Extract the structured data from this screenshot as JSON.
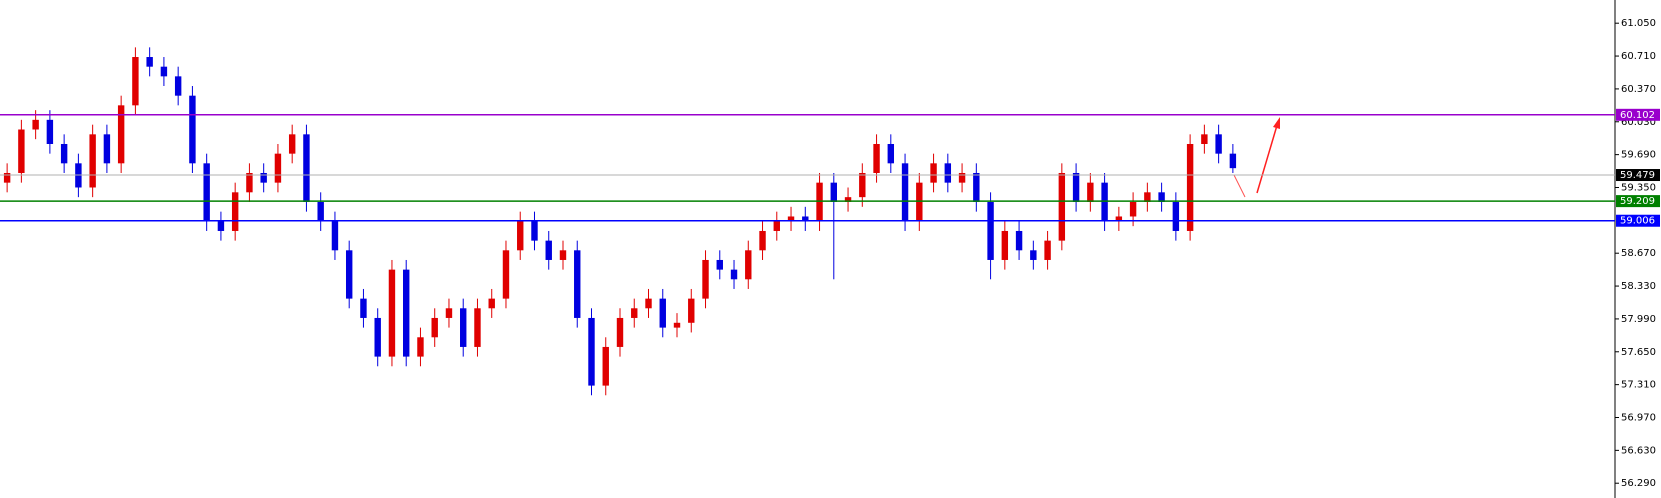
{
  "chart_data": {
    "type": "candlestick",
    "up_color": "#e00000",
    "down_color": "#0000e0",
    "open": [
      59.4,
      59.5,
      59.95,
      60.05,
      59.8,
      59.6,
      59.35,
      59.9,
      59.6,
      60.2,
      60.7,
      60.6,
      60.5,
      60.3,
      59.6,
      59.0,
      58.9,
      59.3,
      59.5,
      59.4,
      59.7,
      59.9,
      59.2,
      59.0,
      58.7,
      58.2,
      58.0,
      57.6,
      58.5,
      57.6,
      57.8,
      58.0,
      58.1,
      57.7,
      58.1,
      58.2,
      58.7,
      59.0,
      58.8,
      58.6,
      58.7,
      58.0,
      57.3,
      57.7,
      58.0,
      58.1,
      58.2,
      57.9,
      57.95,
      58.2,
      58.6,
      58.5,
      58.4,
      58.7,
      58.9,
      59.0,
      59.05,
      59.0,
      59.4,
      59.2,
      59.25,
      59.5,
      59.8,
      59.6,
      59.0,
      59.4,
      59.6,
      59.4,
      59.5,
      59.2,
      58.6,
      58.9,
      58.7,
      58.6,
      58.8,
      59.5,
      59.2,
      59.4,
      59.0,
      59.05,
      59.2,
      59.3,
      59.2,
      58.9,
      59.8,
      59.9,
      59.7
    ],
    "high": [
      59.6,
      60.05,
      60.15,
      60.15,
      59.9,
      59.7,
      60.0,
      60.0,
      60.3,
      60.8,
      60.8,
      60.7,
      60.6,
      60.4,
      59.7,
      59.1,
      59.4,
      59.6,
      59.6,
      59.8,
      60.0,
      60.0,
      59.3,
      59.1,
      58.8,
      58.3,
      58.1,
      58.6,
      58.6,
      57.9,
      58.1,
      58.2,
      58.2,
      58.2,
      58.3,
      58.8,
      59.1,
      59.1,
      58.9,
      58.8,
      58.8,
      58.1,
      57.8,
      58.1,
      58.2,
      58.3,
      58.3,
      58.05,
      58.3,
      58.7,
      58.7,
      58.6,
      58.8,
      59.0,
      59.1,
      59.15,
      59.15,
      59.5,
      59.5,
      59.35,
      59.6,
      59.9,
      59.9,
      59.7,
      59.5,
      59.7,
      59.7,
      59.6,
      59.6,
      59.3,
      59.0,
      59.0,
      58.8,
      58.9,
      59.6,
      59.6,
      59.5,
      59.5,
      59.15,
      59.3,
      59.4,
      59.4,
      59.3,
      59.9,
      60.0,
      60.0,
      59.8
    ],
    "low": [
      59.3,
      59.4,
      59.85,
      59.7,
      59.5,
      59.25,
      59.25,
      59.5,
      59.5,
      60.1,
      60.5,
      60.4,
      60.2,
      59.5,
      58.9,
      58.8,
      58.8,
      59.2,
      59.3,
      59.3,
      59.6,
      59.1,
      58.9,
      58.6,
      58.1,
      57.9,
      57.5,
      57.5,
      57.5,
      57.5,
      57.7,
      57.9,
      57.6,
      57.6,
      58.0,
      58.1,
      58.6,
      58.7,
      58.5,
      58.5,
      57.9,
      57.2,
      57.2,
      57.6,
      57.9,
      58.0,
      57.8,
      57.8,
      57.85,
      58.1,
      58.4,
      58.3,
      58.3,
      58.6,
      58.8,
      58.9,
      58.9,
      58.9,
      58.4,
      59.1,
      59.15,
      59.4,
      59.5,
      58.9,
      58.9,
      59.3,
      59.3,
      59.3,
      59.1,
      58.4,
      58.5,
      58.6,
      58.5,
      58.5,
      58.7,
      59.1,
      59.1,
      58.9,
      58.9,
      58.95,
      59.1,
      59.1,
      58.8,
      58.8,
      59.7,
      59.6,
      59.5
    ],
    "close": [
      59.5,
      59.95,
      60.05,
      59.8,
      59.6,
      59.35,
      59.9,
      59.6,
      60.2,
      60.7,
      60.6,
      60.5,
      60.3,
      59.6,
      59.0,
      58.9,
      59.3,
      59.5,
      59.4,
      59.7,
      59.9,
      59.2,
      59.0,
      58.7,
      58.2,
      58.0,
      57.6,
      58.5,
      57.6,
      57.8,
      58.0,
      58.1,
      57.7,
      58.1,
      58.2,
      58.7,
      59.0,
      58.8,
      58.6,
      58.7,
      58.0,
      57.3,
      57.7,
      58.0,
      58.1,
      58.2,
      57.9,
      57.95,
      58.2,
      58.6,
      58.5,
      58.4,
      58.7,
      58.9,
      59.0,
      59.05,
      59.0,
      59.4,
      59.2,
      59.25,
      59.5,
      59.8,
      59.6,
      59.0,
      59.4,
      59.6,
      59.4,
      59.5,
      59.2,
      58.6,
      58.9,
      58.7,
      58.6,
      58.8,
      59.5,
      59.2,
      59.4,
      59.0,
      59.05,
      59.2,
      59.3,
      59.2,
      58.9,
      59.8,
      59.9,
      59.7,
      59.55
    ],
    "ylim": [
      56.137,
      61.29
    ],
    "yticks": [
      {
        "value": 61.05,
        "label": "61.050"
      },
      {
        "value": 60.71,
        "label": "60.710"
      },
      {
        "value": 60.37,
        "label": "60.370"
      },
      {
        "value": 60.03,
        "label": "60.030"
      },
      {
        "value": 59.69,
        "label": "59.690"
      },
      {
        "value": 59.35,
        "label": "59.350"
      },
      {
        "value": 58.67,
        "label": "58.670"
      },
      {
        "value": 58.33,
        "label": "58.330"
      },
      {
        "value": 57.99,
        "label": "57.990"
      },
      {
        "value": 57.65,
        "label": "57.650"
      },
      {
        "value": 57.31,
        "label": "57.310"
      },
      {
        "value": 56.97,
        "label": "56.970"
      },
      {
        "value": 56.63,
        "label": "56.630"
      },
      {
        "value": 56.29,
        "label": "56.290"
      }
    ],
    "levels": [
      {
        "value": 60.102,
        "color": "#9900cc"
      },
      {
        "value": 59.479,
        "color": "#b0b0b0",
        "label_color": "#000000"
      },
      {
        "value": 59.209,
        "color": "#008000"
      },
      {
        "value": 59.006,
        "color": "#0000ff"
      }
    ]
  }
}
